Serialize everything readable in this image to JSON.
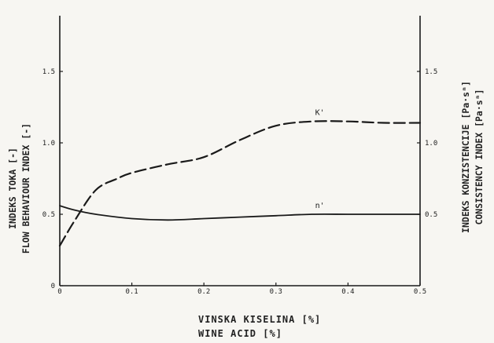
{
  "chart_data": {
    "type": "line",
    "x_ticks": [
      "0",
      "0.1",
      "0.2",
      "0.3",
      "0.4",
      "0.5"
    ],
    "xlabel_lines": [
      "VINSKA KISELINA [%]",
      "WINE ACID [%]"
    ],
    "xlim": [
      0,
      0.5
    ],
    "left_axis": {
      "label_lines": [
        "INDEKS TOKA [-]",
        "FLOW BEHAVIOUR INDEX [-]"
      ],
      "ylim": [
        0,
        1.5
      ],
      "ticks": [
        "0",
        "0.5",
        "1.0",
        "1.5"
      ]
    },
    "right_axis": {
      "label_lines": [
        "INDEKS KONZISTENCIJE [Pa·sⁿ]",
        "CONSISTENCY INDEX [Pa·sⁿ]"
      ],
      "ylim": [
        0,
        1.5
      ],
      "ticks": [
        "0.5",
        "1.0",
        "1.5"
      ]
    },
    "series": [
      {
        "name": "n'",
        "axis": "left",
        "style": "solid",
        "x": [
          0,
          0.02,
          0.05,
          0.1,
          0.15,
          0.2,
          0.25,
          0.3,
          0.35,
          0.4,
          0.45,
          0.5
        ],
        "y": [
          0.56,
          0.53,
          0.5,
          0.47,
          0.46,
          0.47,
          0.48,
          0.49,
          0.5,
          0.5,
          0.5,
          0.5
        ]
      },
      {
        "name": "K'",
        "axis": "right",
        "style": "dashed",
        "x": [
          0,
          0.02,
          0.05,
          0.08,
          0.1,
          0.15,
          0.2,
          0.25,
          0.3,
          0.35,
          0.4,
          0.45,
          0.5
        ],
        "y": [
          0.28,
          0.45,
          0.67,
          0.75,
          0.79,
          0.85,
          0.9,
          1.02,
          1.12,
          1.15,
          1.15,
          1.14,
          1.14
        ]
      }
    ]
  }
}
